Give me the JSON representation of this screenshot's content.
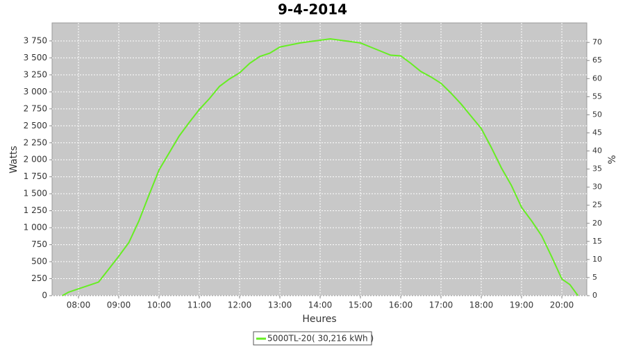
{
  "chart_data": {
    "type": "line",
    "title": "9-4-2014",
    "x_label": "Heures",
    "y_label": "Watts",
    "y2_label": "%",
    "xlim": [
      7.345,
      20.62
    ],
    "xticks": [
      {
        "value": 8,
        "label": "08:00"
      },
      {
        "value": 9,
        "label": "09:00"
      },
      {
        "value": 10,
        "label": "10:00"
      },
      {
        "value": 11,
        "label": "11:00"
      },
      {
        "value": 12,
        "label": "12:00"
      },
      {
        "value": 13,
        "label": "13:00"
      },
      {
        "value": 14,
        "label": "14:00"
      },
      {
        "value": 15,
        "label": "15:00"
      },
      {
        "value": 16,
        "label": "16:00"
      },
      {
        "value": 17,
        "label": "17:00"
      },
      {
        "value": 18,
        "label": "18:00"
      },
      {
        "value": 19,
        "label": "19:00"
      },
      {
        "value": 20,
        "label": "20:00"
      }
    ],
    "ylim": [
      0,
      4015
    ],
    "yticks": [
      0,
      250,
      500,
      750,
      {
        "value": 1000,
        "label": "1 000"
      },
      {
        "value": 1250,
        "label": "1 250"
      },
      {
        "value": 1500,
        "label": "1 500"
      },
      {
        "value": 1750,
        "label": "1 750"
      },
      {
        "value": 2000,
        "label": "2 000"
      },
      {
        "value": 2250,
        "label": "2 250"
      },
      {
        "value": 2500,
        "label": "2 500"
      },
      {
        "value": 2750,
        "label": "2 750"
      },
      {
        "value": 3000,
        "label": "3 000"
      },
      {
        "value": 3250,
        "label": "3 250"
      },
      {
        "value": 3500,
        "label": "3 500"
      },
      {
        "value": 3750,
        "label": "3 750"
      }
    ],
    "y2lim": [
      0,
      75.4
    ],
    "y2ticks": [
      0,
      5,
      10,
      15,
      20,
      25,
      30,
      35,
      40,
      45,
      50,
      55,
      60,
      65,
      70
    ],
    "grid": true,
    "series": [
      {
        "name": "5000TL-20( 30,216 kWh )",
        "color": "#66ee22",
        "x": [
          7.6,
          7.75,
          8.0,
          8.25,
          8.5,
          8.75,
          9.0,
          9.25,
          9.5,
          9.75,
          10.0,
          10.25,
          10.5,
          10.75,
          11.0,
          11.25,
          11.5,
          11.75,
          12.0,
          12.25,
          12.5,
          12.75,
          13.0,
          13.25,
          13.5,
          13.75,
          14.0,
          14.25,
          14.5,
          14.75,
          15.0,
          15.25,
          15.5,
          15.75,
          16.0,
          16.25,
          16.5,
          16.75,
          17.0,
          17.25,
          17.5,
          17.75,
          18.0,
          18.25,
          18.5,
          18.75,
          19.0,
          19.25,
          19.5,
          19.75,
          20.0,
          20.2,
          20.4
        ],
        "values": [
          0,
          50,
          100,
          150,
          200,
          390,
          580,
          780,
          1100,
          1480,
          1850,
          2100,
          2350,
          2550,
          2740,
          2900,
          3080,
          3190,
          3280,
          3420,
          3520,
          3570,
          3660,
          3690,
          3720,
          3740,
          3760,
          3780,
          3760,
          3740,
          3720,
          3660,
          3600,
          3540,
          3530,
          3420,
          3300,
          3220,
          3126,
          2980,
          2820,
          2640,
          2460,
          2180,
          1880,
          1620,
          1300,
          1100,
          880,
          570,
          245,
          163,
          0
        ]
      }
    ]
  }
}
